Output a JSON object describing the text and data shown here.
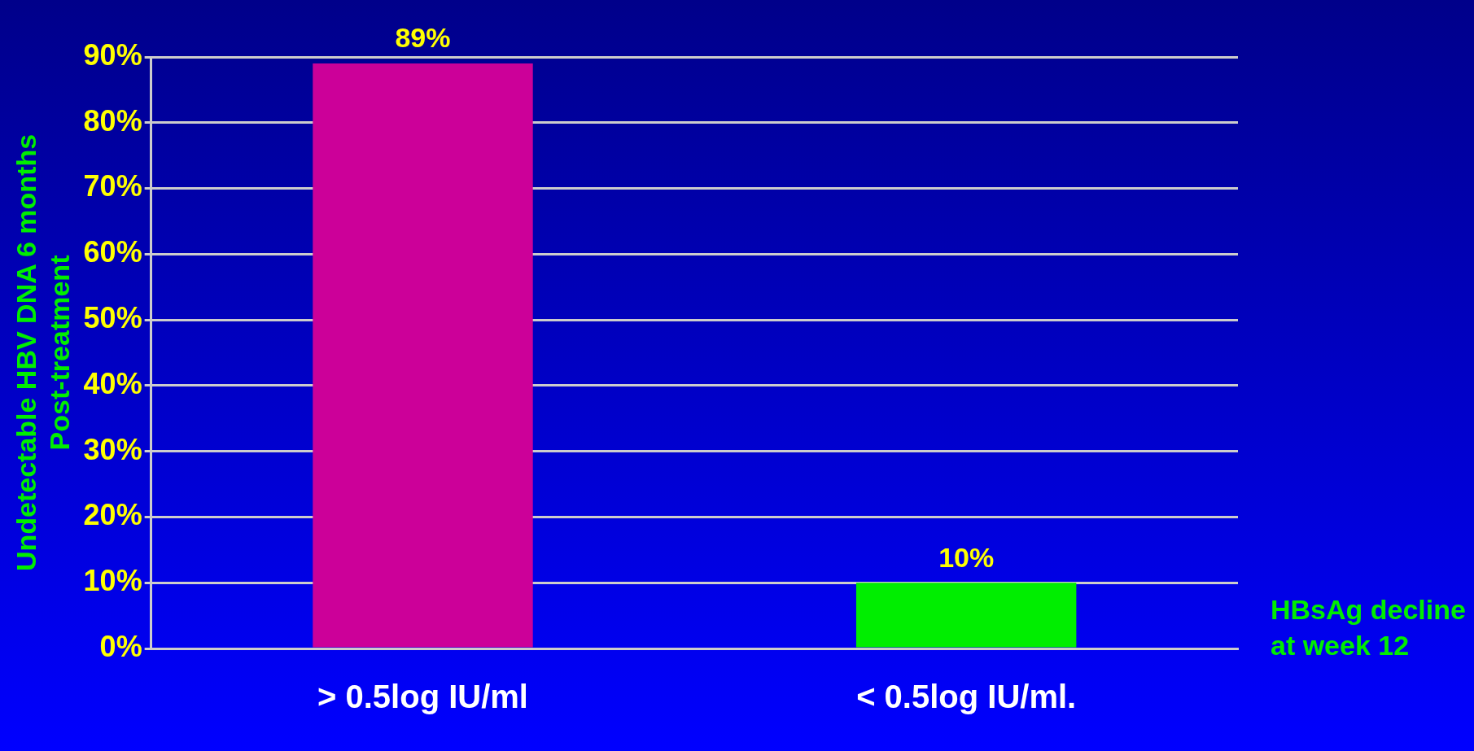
{
  "chart_data": {
    "type": "bar",
    "categories": [
      "> 0.5log IU/ml",
      "< 0.5log IU/ml."
    ],
    "values": [
      89,
      10
    ],
    "colors": [
      "#cc0099",
      "#00ee00"
    ],
    "ylabel": "Undetectable HBV DNA 6 months\nPost-treatment",
    "xlabel": "HBsAg decline\nat week 12",
    "ylim": [
      0,
      90
    ],
    "yticks": [
      {
        "value": 0,
        "label": "0%"
      },
      {
        "value": 10,
        "label": "10%"
      },
      {
        "value": 20,
        "label": "20%"
      },
      {
        "value": 30,
        "label": "30%"
      },
      {
        "value": 40,
        "label": "40%"
      },
      {
        "value": 50,
        "label": "50%"
      },
      {
        "value": 60,
        "label": "60%"
      },
      {
        "value": 70,
        "label": "70%"
      },
      {
        "value": 80,
        "label": "80%"
      },
      {
        "value": 90,
        "label": "90%"
      }
    ],
    "value_labels": [
      "89%",
      "10%"
    ],
    "grid": "y",
    "legend": false
  }
}
